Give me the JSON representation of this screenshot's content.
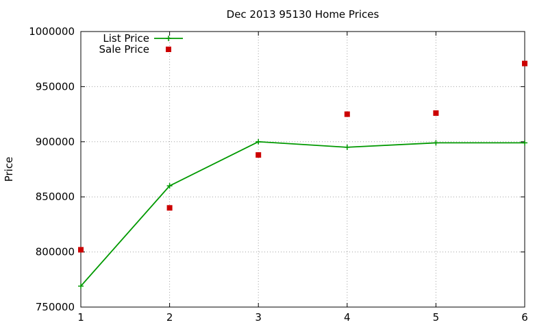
{
  "chart_data": {
    "type": "line",
    "title": "Dec 2013 95130 Home Prices",
    "xlabel": "",
    "ylabel": "Price",
    "x": [
      1,
      2,
      3,
      4,
      5,
      6
    ],
    "xlim": [
      1,
      6
    ],
    "ylim": [
      750000,
      1000000
    ],
    "xticks": [
      "1",
      "2",
      "3",
      "4",
      "5",
      "6"
    ],
    "yticks": [
      "750000",
      "800000",
      "850000",
      "900000",
      "950000",
      "1000000"
    ],
    "grid": true,
    "legend_position": "top-left",
    "series": [
      {
        "name": "List Price",
        "style": "lines+points",
        "marker": "plus",
        "color": "#009900",
        "values": [
          769000,
          860000,
          900000,
          895000,
          899000,
          899000
        ]
      },
      {
        "name": "Sale Price",
        "style": "points",
        "marker": "square",
        "color": "#cc0000",
        "values": [
          802000,
          840000,
          888000,
          925000,
          926000,
          971000
        ]
      }
    ]
  }
}
